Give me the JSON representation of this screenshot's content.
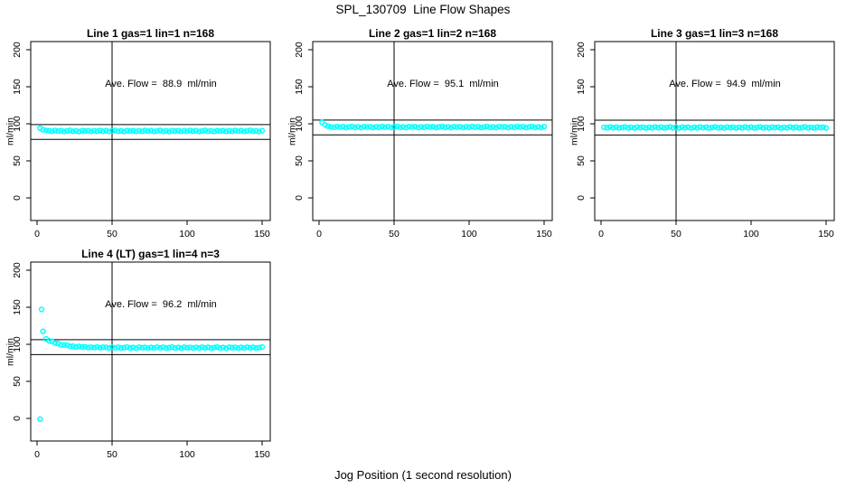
{
  "title": "SPL_130709  Line Flow Shapes",
  "xlabel": "Jog Position (1 second resolution)",
  "colors": {
    "points": "#00ffff",
    "axis": "#000000",
    "text": "#000000",
    "background": "#ffffff"
  },
  "chart_data": {
    "type": "scatter",
    "title": "SPL_130709  Line Flow Shapes",
    "xlabel": "Jog Position (1 second resolution)",
    "legend": "none",
    "grid": false,
    "panels": [
      {
        "id": "line-1",
        "title": "Line 1 gas=1 lin=1 n=168",
        "ylabel": "ml/min",
        "annotation": "Ave. Flow =  88.9  ml/min",
        "ave_flow_ml_min": 88.9,
        "n": 168,
        "xlim": [
          0,
          150
        ],
        "ylim": [
          0,
          200
        ],
        "x_ticks": [
          0,
          50,
          100,
          150
        ],
        "y_ticks": [
          0,
          50,
          100,
          150,
          200
        ],
        "vline_x": 50,
        "hlines": [
          98.9,
          78.9
        ],
        "outliers": [],
        "series": {
          "x_start": 2,
          "x_step": 2,
          "y": [
            94.0,
            92.0,
            91.2,
            90.6,
            89.9,
            91.0,
            90.1,
            90.8,
            89.7,
            90.4,
            91.1,
            89.9,
            90.5,
            89.6,
            90.8,
            90.2,
            90.7,
            89.8,
            90.6,
            89.9,
            91.0,
            90.1,
            90.8,
            89.7,
            90.4,
            91.1,
            89.9,
            90.5,
            89.6,
            90.8,
            90.2,
            90.7,
            89.8,
            90.6,
            89.9,
            91.0,
            90.1,
            90.8,
            89.7,
            90.4,
            91.1,
            89.9,
            90.5,
            89.6,
            90.8,
            90.2,
            90.7,
            89.8,
            90.6,
            89.9,
            91.0,
            90.1,
            90.8,
            89.7,
            90.4,
            91.1,
            89.9,
            90.5,
            89.6,
            90.8,
            90.2,
            90.7,
            89.8,
            90.6,
            89.9,
            91.0,
            90.1,
            90.8,
            89.7,
            90.4,
            91.1,
            89.9,
            90.5,
            89.6,
            90.8
          ]
        }
      },
      {
        "id": "line-2",
        "title": "Line 2 gas=1 lin=2 n=168",
        "ylabel": "ml/min",
        "annotation": "Ave. Flow =  95.1  ml/min",
        "ave_flow_ml_min": 95.1,
        "n": 168,
        "xlim": [
          0,
          150
        ],
        "ylim": [
          0,
          200
        ],
        "x_ticks": [
          0,
          50,
          100,
          150
        ],
        "y_ticks": [
          0,
          50,
          100,
          150,
          200
        ],
        "vline_x": 50,
        "hlines": [
          105.1,
          85.1
        ],
        "outliers": [],
        "series": {
          "x_start": 2,
          "x_step": 2,
          "y": [
            102.0,
            98.5,
            96.8,
            95.9,
            95.2,
            96.3,
            95.4,
            96.1,
            94.9,
            95.7,
            96.4,
            95.1,
            95.8,
            94.9,
            96.2,
            95.5,
            96.0,
            95.0,
            95.9,
            95.2,
            96.3,
            95.4,
            96.1,
            94.9,
            95.7,
            96.4,
            95.1,
            95.8,
            94.9,
            96.2,
            95.5,
            96.0,
            95.0,
            95.9,
            95.2,
            96.3,
            95.4,
            96.1,
            94.9,
            95.7,
            96.4,
            95.1,
            95.8,
            94.9,
            96.2,
            95.5,
            96.0,
            95.0,
            95.9,
            95.2,
            96.3,
            95.4,
            96.1,
            94.9,
            95.7,
            96.4,
            95.1,
            95.8,
            94.9,
            96.2,
            95.5,
            96.0,
            95.0,
            95.9,
            95.2,
            96.3,
            95.4,
            96.1,
            94.9,
            95.7,
            96.4,
            95.1,
            95.8,
            94.9,
            96.2
          ]
        }
      },
      {
        "id": "line-3",
        "title": "Line 3 gas=1 lin=3 n=168",
        "ylabel": "ml/min",
        "annotation": "Ave. Flow =  94.9  ml/min",
        "ave_flow_ml_min": 94.9,
        "n": 168,
        "xlim": [
          0,
          150
        ],
        "ylim": [
          0,
          200
        ],
        "x_ticks": [
          0,
          50,
          100,
          150
        ],
        "y_ticks": [
          0,
          50,
          100,
          150,
          200
        ],
        "vline_x": 50,
        "hlines": [
          104.9,
          84.9
        ],
        "outliers": [],
        "series": {
          "x_start": 2,
          "x_step": 2,
          "y": [
            95.3,
            94.6,
            95.7,
            94.8,
            95.5,
            94.4,
            95.1,
            95.8,
            94.6,
            95.2,
            94.3,
            95.5,
            94.9,
            95.4,
            94.4,
            95.3,
            94.6,
            95.7,
            94.8,
            95.5,
            94.4,
            95.1,
            95.8,
            94.6,
            95.2,
            94.3,
            95.5,
            94.9,
            95.4,
            94.4,
            95.3,
            94.6,
            95.7,
            94.8,
            95.5,
            94.4,
            95.1,
            95.8,
            94.6,
            95.2,
            94.3,
            95.5,
            94.9,
            95.4,
            94.4,
            95.3,
            94.6,
            95.7,
            94.8,
            95.5,
            94.4,
            95.1,
            95.8,
            94.6,
            95.2,
            94.3,
            95.5,
            94.9,
            95.4,
            94.4,
            95.3,
            94.6,
            95.7,
            94.8,
            95.5,
            94.4,
            95.1,
            95.8,
            94.6,
            95.2,
            94.3,
            95.5,
            94.9,
            95.4,
            94.4
          ]
        }
      },
      {
        "id": "line-4",
        "title": "Line 4 (LT) gas=1 lin=4 n=3",
        "ylabel": "ml/min",
        "annotation": "Ave. Flow =  96.2  ml/min",
        "ave_flow_ml_min": 96.2,
        "n": 3,
        "xlim": [
          0,
          150
        ],
        "ylim": [
          0,
          200
        ],
        "x_ticks": [
          0,
          50,
          100,
          150
        ],
        "y_ticks": [
          0,
          50,
          100,
          150,
          200
        ],
        "vline_x": 50,
        "hlines": [
          106.2,
          86.2
        ],
        "outliers": [
          [
            2,
            -1.0
          ],
          [
            3,
            147.0
          ],
          [
            4,
            117.5
          ]
        ],
        "series": {
          "x_start": 6,
          "x_step": 2,
          "y": [
            107.4,
            104.7,
            103.9,
            101.7,
            101.1,
            99.2,
            99.0,
            99.0,
            97.4,
            97.5,
            96.4,
            97.2,
            96.4,
            96.6,
            95.6,
            96.2,
            95.6,
            96.4,
            95.5,
            96.1,
            95.8,
            95.1,
            96.2,
            95.3,
            96.0,
            94.9,
            95.6,
            96.3,
            95.0,
            95.7,
            94.8,
            96.1,
            95.4,
            95.9,
            95.0,
            95.8,
            95.1,
            96.2,
            95.3,
            96.0,
            94.9,
            95.6,
            96.3,
            95.0,
            95.7,
            94.8,
            96.1,
            95.4,
            95.9,
            95.0,
            95.8,
            95.1,
            96.2,
            95.3,
            96.0,
            94.9,
            95.6,
            96.3,
            95.0,
            95.7,
            94.8,
            96.1,
            95.4,
            95.9,
            95.0,
            95.8,
            95.1,
            96.2,
            95.3,
            96.0,
            94.9,
            95.6,
            96.3
          ]
        }
      }
    ]
  }
}
